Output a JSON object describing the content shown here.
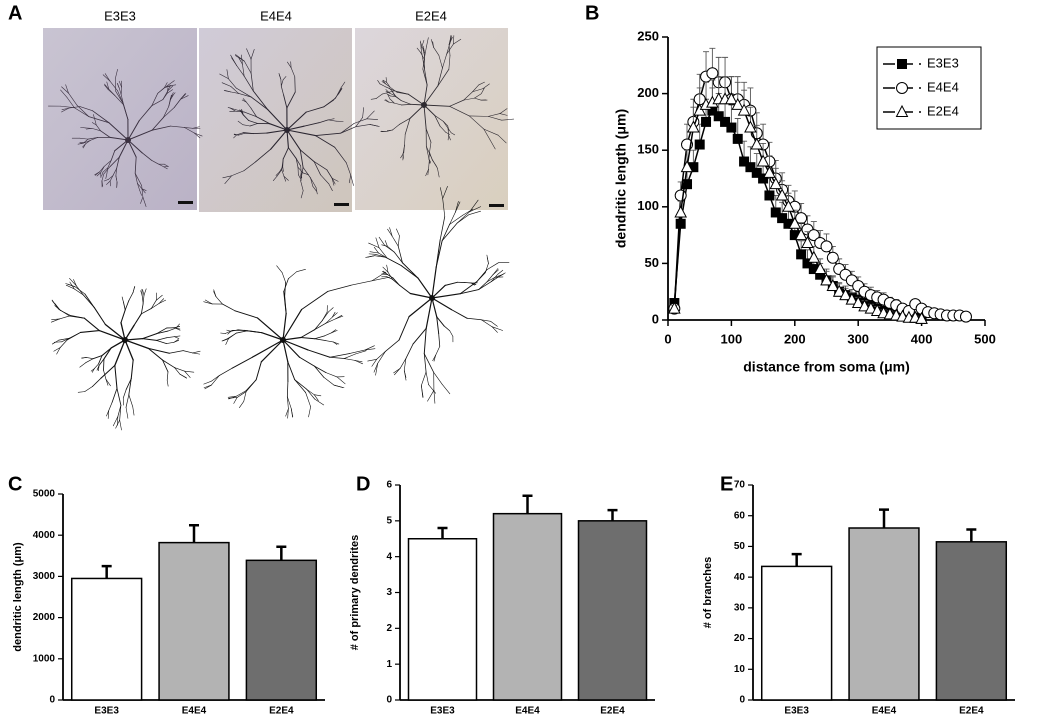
{
  "panel_a": {
    "label": "A",
    "genotypes": [
      "E3E3",
      "E4E4",
      "E2E4"
    ]
  },
  "chart_data": [
    {
      "type": "line",
      "label": "B",
      "xlabel": "distance from soma (μm)",
      "ylabel": "dendritic length (μm)",
      "xlim": [
        0,
        500
      ],
      "xticks": [
        0,
        100,
        200,
        300,
        400,
        500
      ],
      "ylim": [
        0,
        250
      ],
      "yticks": [
        0,
        50,
        100,
        150,
        200,
        250
      ],
      "legend": "upper right",
      "x": [
        10,
        20,
        30,
        40,
        50,
        60,
        70,
        80,
        90,
        100,
        110,
        120,
        130,
        140,
        150,
        160,
        170,
        180,
        190,
        200,
        210,
        220,
        230,
        240,
        250,
        260,
        270,
        280,
        290,
        300,
        310,
        320,
        330,
        340,
        350,
        360,
        370,
        380,
        390,
        400,
        410,
        420,
        430,
        440,
        450,
        460,
        470
      ],
      "series": [
        {
          "name": "E3E3",
          "color": "#000000",
          "marker": "square",
          "marker_fill": "filled",
          "values": [
            15,
            85,
            120,
            135,
            155,
            175,
            185,
            180,
            175,
            170,
            160,
            140,
            135,
            130,
            125,
            110,
            95,
            90,
            85,
            75,
            58,
            50,
            45,
            40,
            35,
            30,
            25,
            22,
            20,
            18,
            15,
            13,
            10,
            8,
            6,
            5,
            4,
            3,
            2,
            1,
            null,
            null,
            null,
            null,
            null,
            null,
            null
          ],
          "errors": [
            3,
            10,
            15,
            15,
            18,
            20,
            20,
            20,
            20,
            20,
            18,
            18,
            18,
            17,
            17,
            15,
            15,
            14,
            14,
            13,
            12,
            12,
            11,
            10,
            10,
            9,
            8,
            8,
            7,
            7,
            6,
            6,
            5,
            5,
            4,
            4,
            3,
            3,
            2,
            2,
            null,
            null,
            null,
            null,
            null,
            null,
            null
          ]
        },
        {
          "name": "E4E4",
          "color": "#000000",
          "marker": "circle",
          "marker_fill": "open",
          "values": [
            10,
            110,
            155,
            175,
            195,
            215,
            218,
            210,
            210,
            195,
            195,
            190,
            185,
            165,
            155,
            140,
            125,
            115,
            105,
            100,
            90,
            80,
            75,
            68,
            65,
            55,
            45,
            40,
            35,
            30,
            25,
            22,
            20,
            18,
            15,
            13,
            10,
            8,
            14,
            10,
            7,
            6,
            5,
            4,
            4,
            4,
            3
          ],
          "errors": [
            3,
            12,
            18,
            20,
            22,
            22,
            22,
            22,
            22,
            20,
            20,
            20,
            20,
            18,
            18,
            17,
            16,
            15,
            14,
            14,
            13,
            12,
            12,
            11,
            11,
            10,
            9,
            9,
            8,
            8,
            7,
            7,
            6,
            6,
            5,
            5,
            4,
            4,
            4,
            3,
            3,
            3,
            2,
            2,
            2,
            2,
            2
          ]
        },
        {
          "name": "E2E4",
          "color": "#000000",
          "marker": "triangle",
          "marker_fill": "open",
          "values": [
            10,
            95,
            135,
            170,
            185,
            190,
            192,
            195,
            195,
            195,
            190,
            185,
            170,
            155,
            140,
            130,
            120,
            110,
            100,
            85,
            75,
            68,
            55,
            45,
            35,
            30,
            25,
            22,
            18,
            15,
            12,
            10,
            8,
            6,
            5,
            4,
            3,
            2,
            2,
            1,
            null,
            null,
            null,
            null,
            null,
            null,
            null
          ],
          "errors": [
            3,
            10,
            15,
            18,
            20,
            20,
            20,
            20,
            20,
            20,
            20,
            18,
            18,
            17,
            16,
            15,
            14,
            13,
            12,
            12,
            11,
            10,
            10,
            9,
            8,
            8,
            7,
            6,
            6,
            5,
            5,
            4,
            4,
            3,
            3,
            3,
            2,
            2,
            2,
            2,
            null,
            null,
            null,
            null,
            null,
            null,
            null
          ]
        }
      ]
    },
    {
      "type": "bar",
      "label": "C",
      "ylabel": "dendritic length (μm)",
      "categories": [
        "E3E3",
        "E4E4",
        "E2E4"
      ],
      "values": [
        2950,
        3820,
        3390
      ],
      "errors": [
        300,
        420,
        330
      ],
      "colors": [
        "#ffffff",
        "#b3b3b3",
        "#6e6e6e"
      ],
      "ylim": [
        0,
        5000
      ],
      "yticks": [
        0,
        1000,
        2000,
        3000,
        4000,
        5000
      ]
    },
    {
      "type": "bar",
      "label": "D",
      "ylabel": "# of primary dendrites",
      "categories": [
        "E3E3",
        "E4E4",
        "E2E4"
      ],
      "values": [
        4.5,
        5.2,
        5.0
      ],
      "errors": [
        0.3,
        0.5,
        0.3
      ],
      "colors": [
        "#ffffff",
        "#b3b3b3",
        "#6e6e6e"
      ],
      "ylim": [
        0,
        6
      ],
      "yticks": [
        0,
        1,
        2,
        3,
        4,
        5,
        6
      ]
    },
    {
      "type": "bar",
      "label": "E",
      "ylabel": "# of branches",
      "categories": [
        "E3E3",
        "E4E4",
        "E2E4"
      ],
      "values": [
        43.5,
        56,
        51.5
      ],
      "errors": [
        4,
        6,
        4
      ],
      "colors": [
        "#ffffff",
        "#b3b3b3",
        "#6e6e6e"
      ],
      "ylim": [
        0,
        70
      ],
      "yticks": [
        0,
        10,
        20,
        30,
        40,
        50,
        60,
        70
      ]
    }
  ]
}
